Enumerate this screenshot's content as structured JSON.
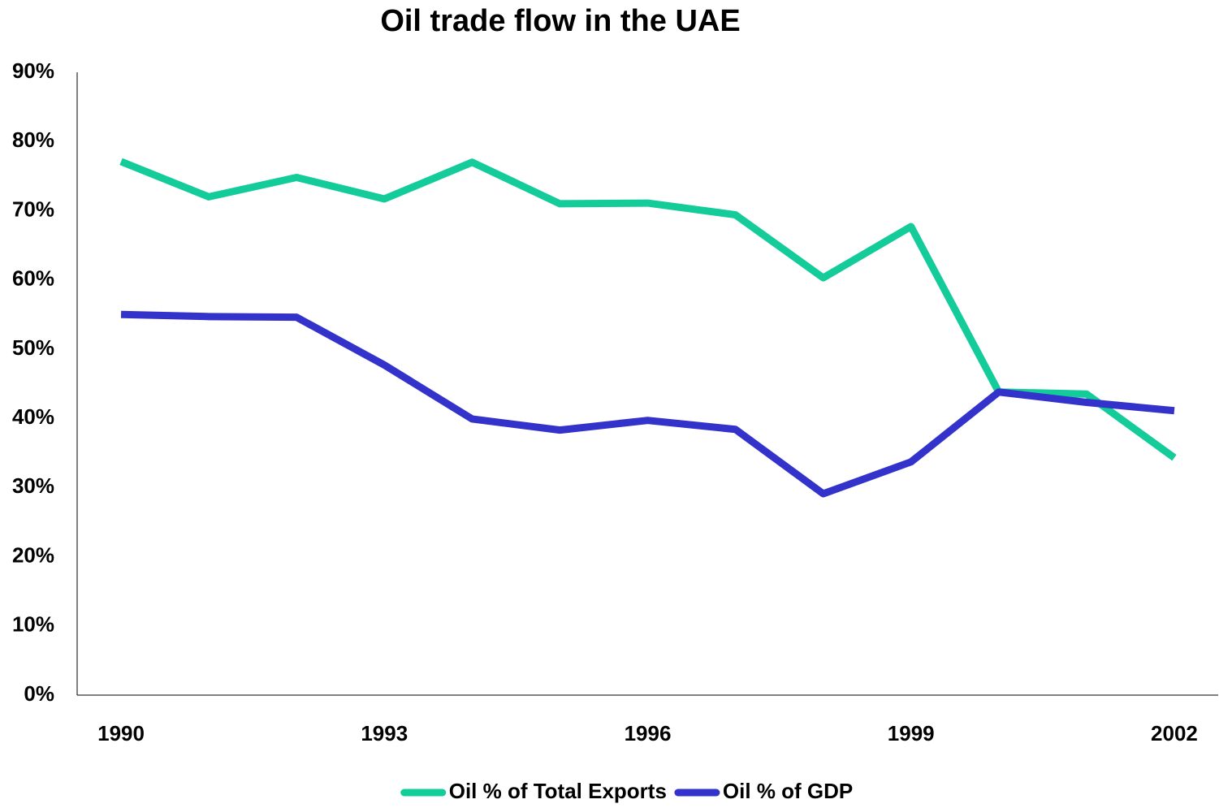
{
  "chart_data": {
    "type": "line",
    "title": "Oil trade flow in the UAE",
    "x": [
      1990,
      1991,
      1992,
      1993,
      1994,
      1995,
      1996,
      1997,
      1998,
      1999,
      2000,
      2001,
      2002
    ],
    "xlim": [
      1989.5,
      2002.5
    ],
    "xticks": [
      1990,
      1993,
      1996,
      1999,
      2002
    ],
    "ylim": [
      0,
      90
    ],
    "yticks": [
      {
        "value": 0,
        "label": "0%"
      },
      {
        "value": 10,
        "label": "10%"
      },
      {
        "value": 20,
        "label": "20%"
      },
      {
        "value": 30,
        "label": "30%"
      },
      {
        "value": 40,
        "label": "40%"
      },
      {
        "value": 50,
        "label": "50%"
      },
      {
        "value": 60,
        "label": "60%"
      },
      {
        "value": 70,
        "label": "70%"
      },
      {
        "value": 80,
        "label": "80%"
      },
      {
        "value": 90,
        "label": "90%"
      }
    ],
    "grid": false,
    "legend": "bottom",
    "series": [
      {
        "name": "Oil % of Total Exports",
        "color": "#14cc99",
        "values": [
          77.1,
          72,
          74.8,
          71.7,
          77,
          71,
          71.1,
          69.4,
          60.3,
          67.7,
          43.8,
          43.5,
          34.3
        ]
      },
      {
        "name": "Oil % of GDP",
        "color": "#3333cc",
        "values": [
          55,
          54.7,
          54.6,
          47.7,
          39.9,
          38.3,
          39.7,
          38.4,
          29.1,
          33.7,
          43.8,
          42.3,
          41.1
        ]
      }
    ]
  }
}
